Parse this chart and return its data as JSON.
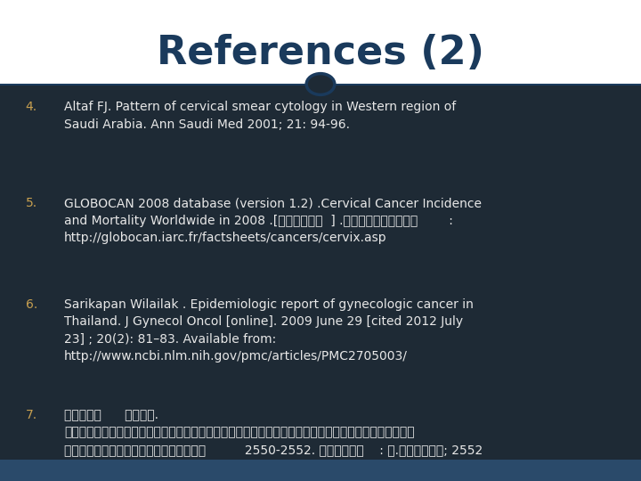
{
  "title": "References (2)",
  "title_color": "#1a3a5c",
  "title_fontsize": 32,
  "bg_color": "#1e2a35",
  "header_bg_color": "#ffffff",
  "separator_color": "#1a3a5c",
  "footer_color": "#2a4a6a",
  "number_color": "#c8a050",
  "text_color": "#e8e8e8",
  "circle_color": "#1a3a5c",
  "entries": [
    {
      "number": "4.",
      "text": "Altaf FJ. Pattern of cervical smear cytology in Western region of\nSaudi Arabia. Ann Saudi Med 2001; 21: 94-96."
    },
    {
      "number": "5.",
      "text": "GLOBOCAN 2008 database (version 1.2) .Cervical Cancer Incidence\nand Mortality Worldwide in 2008 .[ออนไลน  ] .เขาถงไดจาก        :\nhttp://globocan.iarc.fr/factsheets/cancers/cervix.asp"
    },
    {
      "number": "6.",
      "text": "Sarikapan Wilailak . Epidemiologic report of gynecologic cancer in\nThailand. J Gynecol Oncol [online]. 2009 June 29 [cited 2012 July\n23] ; 20(2): 81–83. Available from:\nhttp://www.ncbi.nlm.nih.gov/pmc/articles/PMC2705003/"
    },
    {
      "number": "7.",
      "text": "ปนแกว      ผลพล.\nผลการตรวจคดกรองมะเรงปากมดลกทผดปกตในโรงพยาบาลมหา\nวทยาลยนเรศวรระหวางป          2550-2552. พษณโลก    : ม.นเรศวร; 2552"
    }
  ]
}
